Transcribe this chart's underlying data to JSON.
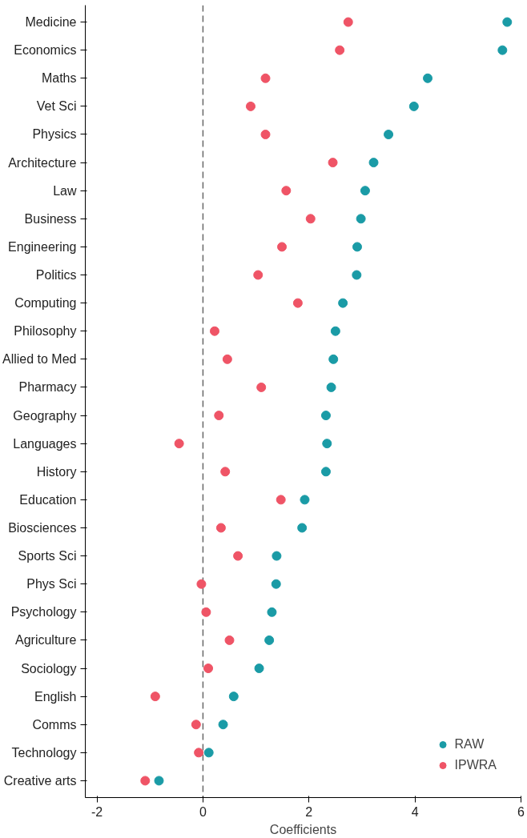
{
  "chart_data": {
    "type": "scatter",
    "xlabel": "Coefficients",
    "categories": [
      "Medicine",
      "Economics",
      "Maths",
      "Vet Sci",
      "Physics",
      "Architecture",
      "Law",
      "Business",
      "Engineering",
      "Politics",
      "Computing",
      "Philosophy",
      "Allied to Med",
      "Pharmacy",
      "Geography",
      "Languages",
      "History",
      "Education",
      "Biosciences",
      "Sports Sci",
      "Phys Sci",
      "Psychology",
      "Agriculture",
      "Sociology",
      "English",
      "Comms",
      "Technology",
      "Creative arts"
    ],
    "orientation": "horizontal",
    "series": [
      {
        "name": "RAW",
        "color": "#1a9ba6",
        "values": [
          5.74,
          5.65,
          4.24,
          3.98,
          3.5,
          3.22,
          3.06,
          2.98,
          2.91,
          2.9,
          2.64,
          2.5,
          2.46,
          2.42,
          2.32,
          2.34,
          2.32,
          1.92,
          1.87,
          1.39,
          1.38,
          1.3,
          1.25,
          1.06,
          0.58,
          0.38,
          0.11,
          -0.83
        ]
      },
      {
        "name": "IPWRA",
        "color": "#ef5466",
        "values": [
          2.74,
          2.58,
          1.18,
          0.9,
          1.18,
          2.45,
          1.57,
          2.03,
          1.49,
          1.04,
          1.79,
          0.22,
          0.46,
          1.1,
          0.3,
          -0.45,
          0.42,
          1.47,
          0.34,
          0.66,
          -0.03,
          0.06,
          0.5,
          0.1,
          -0.9,
          -0.13,
          -0.08,
          -1.09
        ]
      }
    ],
    "xlim": [
      -2.22,
      6
    ],
    "xticks": [
      -2,
      0,
      2,
      4,
      6
    ],
    "ref_lines": [
      {
        "axis": "x",
        "value": 0,
        "color": "#666666",
        "line_style": "dashed"
      }
    ],
    "marker": "circle",
    "grid": false,
    "legend": "bottom right"
  }
}
